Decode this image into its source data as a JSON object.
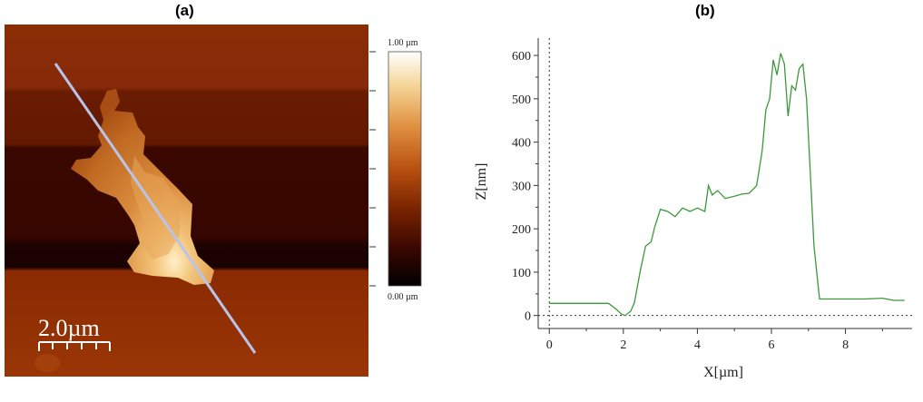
{
  "panels": {
    "a": {
      "label": "(a)"
    },
    "b": {
      "label": "(b)"
    }
  },
  "afm_image": {
    "scale_bar_label": "2.0µm",
    "colorbar": {
      "max_label": "1.00 µm",
      "min_label": "0.00 µm",
      "colors": [
        "#000000",
        "#3a0700",
        "#7a2400",
        "#b85010",
        "#e09040",
        "#f5d79a",
        "#ffffff"
      ]
    },
    "profile_line_color": "#b8c4ea"
  },
  "chart_data": {
    "type": "line",
    "title": "",
    "xlabel": "X[µm]",
    "ylabel": "Z[nm]",
    "xlim": [
      -0.3,
      9.8
    ],
    "ylim": [
      -30,
      640
    ],
    "xticks": [
      0,
      2,
      4,
      6,
      8
    ],
    "yticks": [
      0,
      100,
      200,
      300,
      400,
      500,
      600
    ],
    "xtick_labels": [
      "0",
      "2",
      "4",
      "6",
      "8"
    ],
    "ytick_labels": [
      "0",
      "100",
      "200",
      "300",
      "400",
      "500",
      "600"
    ],
    "grid": false,
    "reference_lines": {
      "x_zero_dashed": true,
      "y_zero_dashed": true
    },
    "series": [
      {
        "color": "#3a9a3a",
        "x": [
          0,
          0.5,
          1.0,
          1.6,
          1.8,
          1.95,
          2.05,
          2.2,
          2.3,
          2.45,
          2.6,
          2.75,
          2.85,
          3.0,
          3.2,
          3.4,
          3.6,
          3.8,
          4.0,
          4.2,
          4.3,
          4.4,
          4.55,
          4.75,
          5.0,
          5.2,
          5.4,
          5.6,
          5.75,
          5.85,
          5.95,
          6.05,
          6.15,
          6.25,
          6.35,
          6.45,
          6.55,
          6.65,
          6.75,
          6.85,
          6.95,
          7.05,
          7.15,
          7.3,
          7.5,
          7.7,
          8.0,
          8.5,
          9.0,
          9.3,
          9.6
        ],
        "y": [
          28,
          28,
          28,
          28,
          15,
          3,
          0,
          10,
          30,
          100,
          160,
          170,
          205,
          245,
          240,
          228,
          248,
          240,
          248,
          240,
          300,
          278,
          288,
          270,
          275,
          280,
          282,
          300,
          380,
          475,
          500,
          590,
          555,
          605,
          580,
          460,
          530,
          520,
          570,
          580,
          500,
          330,
          160,
          38,
          38,
          38,
          38,
          38,
          40,
          35,
          35
        ]
      }
    ]
  }
}
